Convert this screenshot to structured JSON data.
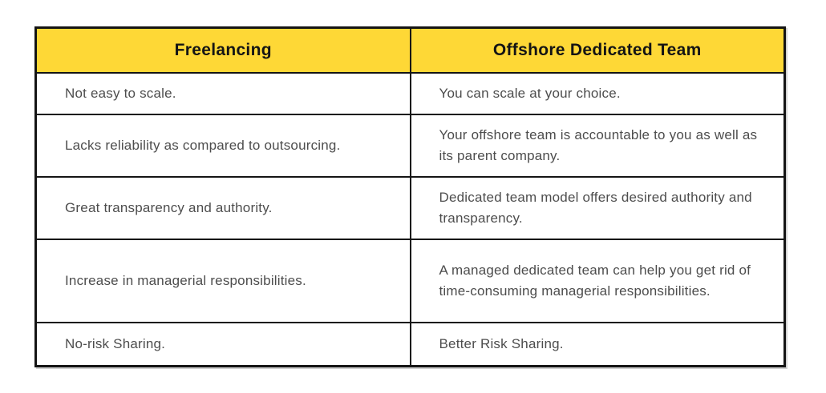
{
  "table": {
    "columns": [
      {
        "label": "Freelancing"
      },
      {
        "label": "Offshore Dedicated Team"
      }
    ],
    "rows": [
      {
        "freelancing": "Not easy to scale.",
        "offshore": "You can scale at your choice."
      },
      {
        "freelancing": "Lacks reliability as compared to outsourcing.",
        "offshore": "Your offshore team is accountable to you as well as its parent company."
      },
      {
        "freelancing": "Great transparency and authority.",
        "offshore": "Dedicated team model offers desired authority and transparency."
      },
      {
        "freelancing": "Increase in managerial responsibilities.",
        "offshore": "A managed dedicated team can help you get rid of time-consuming managerial responsibilities."
      },
      {
        "freelancing": "No-risk Sharing.",
        "offshore": "Better Risk Sharing."
      }
    ],
    "colors": {
      "header_bg": "#fed836",
      "header_text": "#141414",
      "body_text": "#4d4d4d",
      "border": "#141414"
    }
  }
}
